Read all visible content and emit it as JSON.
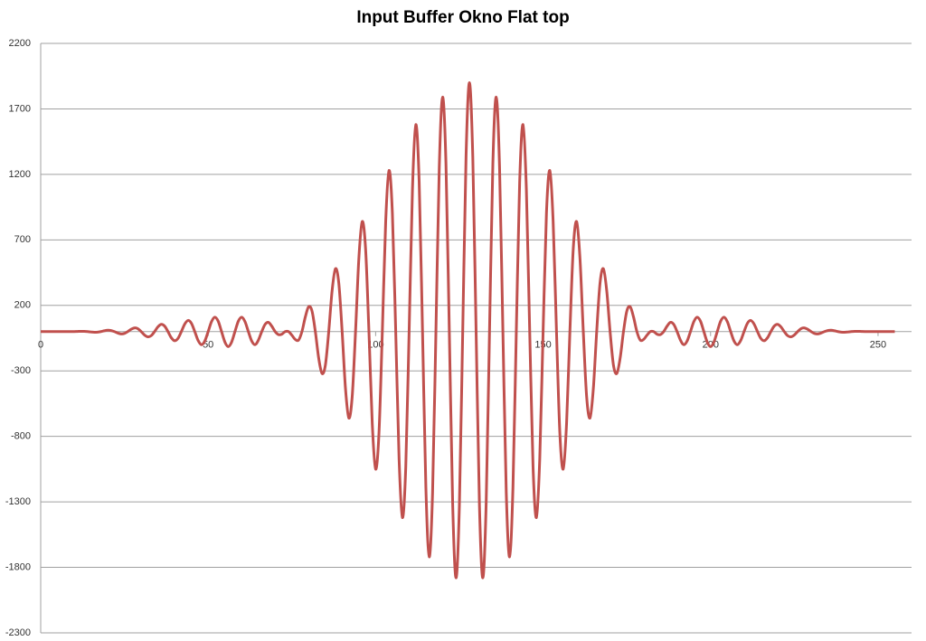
{
  "chart_data": {
    "type": "line",
    "title": "Input Buffer Okno Flat top",
    "x": [
      0,
      1,
      2,
      3,
      4,
      5,
      6,
      7,
      8,
      9,
      10,
      11,
      12,
      13,
      14,
      15,
      16,
      17,
      18,
      19,
      20,
      21,
      22,
      23,
      24,
      25,
      26,
      27,
      28,
      29,
      30,
      31,
      32,
      33,
      34,
      35,
      36,
      37,
      38,
      39,
      40,
      41,
      42,
      43,
      44,
      45,
      46,
      47,
      48,
      49,
      50,
      51,
      52,
      53,
      54,
      55,
      56,
      57,
      58,
      59,
      60,
      61,
      62,
      63,
      64,
      65,
      66,
      67,
      68,
      69,
      70,
      71,
      72,
      73,
      74,
      75,
      76,
      77,
      78,
      79,
      80,
      81,
      82,
      83,
      84,
      85,
      86,
      87,
      88,
      89,
      90,
      91,
      92,
      93,
      94,
      95,
      96,
      97,
      98,
      99,
      100,
      101,
      102,
      103,
      104,
      105,
      106,
      107,
      108,
      109,
      110,
      111,
      112,
      113,
      114,
      115,
      116,
      117,
      118,
      119,
      120,
      121,
      122,
      123,
      124,
      125,
      126,
      127,
      128,
      129,
      130,
      131,
      132,
      133,
      134,
      135,
      136,
      137,
      138,
      139,
      140,
      141,
      142,
      143,
      144,
      145,
      146,
      147,
      148,
      149,
      150,
      151,
      152,
      153,
      154,
      155,
      156,
      157,
      158,
      159,
      160,
      161,
      162,
      163,
      164,
      165,
      166,
      167,
      168,
      169,
      170,
      171,
      172,
      173,
      174,
      175,
      176,
      177,
      178,
      179,
      180,
      181,
      182,
      183,
      184,
      185,
      186,
      187,
      188,
      189,
      190,
      191,
      192,
      193,
      194,
      195,
      196,
      197,
      198,
      199,
      200,
      201,
      202,
      203,
      204,
      205,
      206,
      207,
      208,
      209,
      210,
      211,
      212,
      213,
      214,
      215,
      216,
      217,
      218,
      219,
      220,
      221,
      222,
      223,
      224,
      225,
      226,
      227,
      228,
      229,
      230,
      231,
      232,
      233,
      234,
      235,
      236,
      237,
      238,
      239,
      240,
      241,
      242,
      243,
      244,
      245,
      246,
      247,
      248,
      249,
      250,
      251,
      252,
      253,
      254,
      255
    ],
    "series": [
      {
        "name": "Input Buffer",
        "color": "#c0504d",
        "values": [
          0,
          0,
          0,
          0,
          0,
          0,
          0,
          0,
          0,
          0,
          0,
          1,
          2,
          2,
          0,
          -3,
          -5,
          -4,
          0,
          6,
          10,
          8,
          0,
          -11,
          -18,
          -14,
          0,
          18,
          28,
          22,
          0,
          -26,
          -40,
          -31,
          0,
          36,
          55,
          42,
          0,
          -47,
          -70,
          -52,
          0,
          57,
          85,
          63,
          0,
          -68,
          -100,
          -72,
          0,
          76,
          110,
          79,
          0,
          -80,
          -115,
          -80,
          0,
          79,
          110,
          76,
          0,
          -72,
          -100,
          -65,
          0,
          55,
          70,
          41,
          0,
          -23,
          -20,
          0,
          0,
          -28,
          -60,
          -65,
          0,
          111,
          190,
          157,
          0,
          -203,
          -320,
          -255,
          0,
          311,
          480,
          371,
          0,
          -435,
          -660,
          -498,
          0,
          562,
          840,
          631,
          0,
          -705,
          -1050,
          -774,
          0,
          838,
          1230,
          903,
          0,
          -970,
          -1420,
          -1032,
          0,
          1089,
          1580,
          1142,
          0,
          -1191,
          -1720,
          -1228,
          0,
          1253,
          1790,
          1281,
          0,
          -1313,
          -1880,
          -1333,
          0,
          1340,
          1900,
          1340,
          0,
          -1333,
          -1880,
          -1313,
          0,
          1281,
          1790,
          1253,
          0,
          -1228,
          -1720,
          -1191,
          0,
          1142,
          1580,
          1089,
          0,
          -1032,
          -1420,
          -970,
          0,
          903,
          1230,
          838,
          0,
          -774,
          -1050,
          -705,
          0,
          631,
          840,
          562,
          0,
          -498,
          -660,
          -435,
          0,
          371,
          480,
          311,
          0,
          -255,
          -320,
          -203,
          0,
          157,
          190,
          111,
          0,
          -65,
          -60,
          -28,
          0,
          0,
          -20,
          -23,
          0,
          41,
          70,
          55,
          0,
          -65,
          -100,
          -72,
          0,
          76,
          110,
          79,
          0,
          -80,
          -115,
          -80,
          0,
          79,
          110,
          76,
          0,
          -72,
          -100,
          -68,
          0,
          63,
          85,
          57,
          0,
          -52,
          -70,
          -47,
          0,
          42,
          55,
          36,
          0,
          -31,
          -40,
          -26,
          0,
          22,
          28,
          18,
          0,
          -14,
          -18,
          -11,
          0,
          8,
          10,
          6,
          0,
          -4,
          -5,
          -3,
          0,
          2,
          2,
          1,
          0,
          0,
          0,
          0,
          0,
          0,
          0,
          0,
          0,
          0
        ]
      }
    ],
    "xlim": [
      0,
      260
    ],
    "xticks": [
      0,
      50,
      100,
      150,
      200,
      250
    ],
    "ylim": [
      -2300,
      2200
    ],
    "yticks": [
      -2300,
      -1800,
      -1300,
      -800,
      -300,
      200,
      700,
      1200,
      1700,
      2200
    ],
    "grid": true
  }
}
